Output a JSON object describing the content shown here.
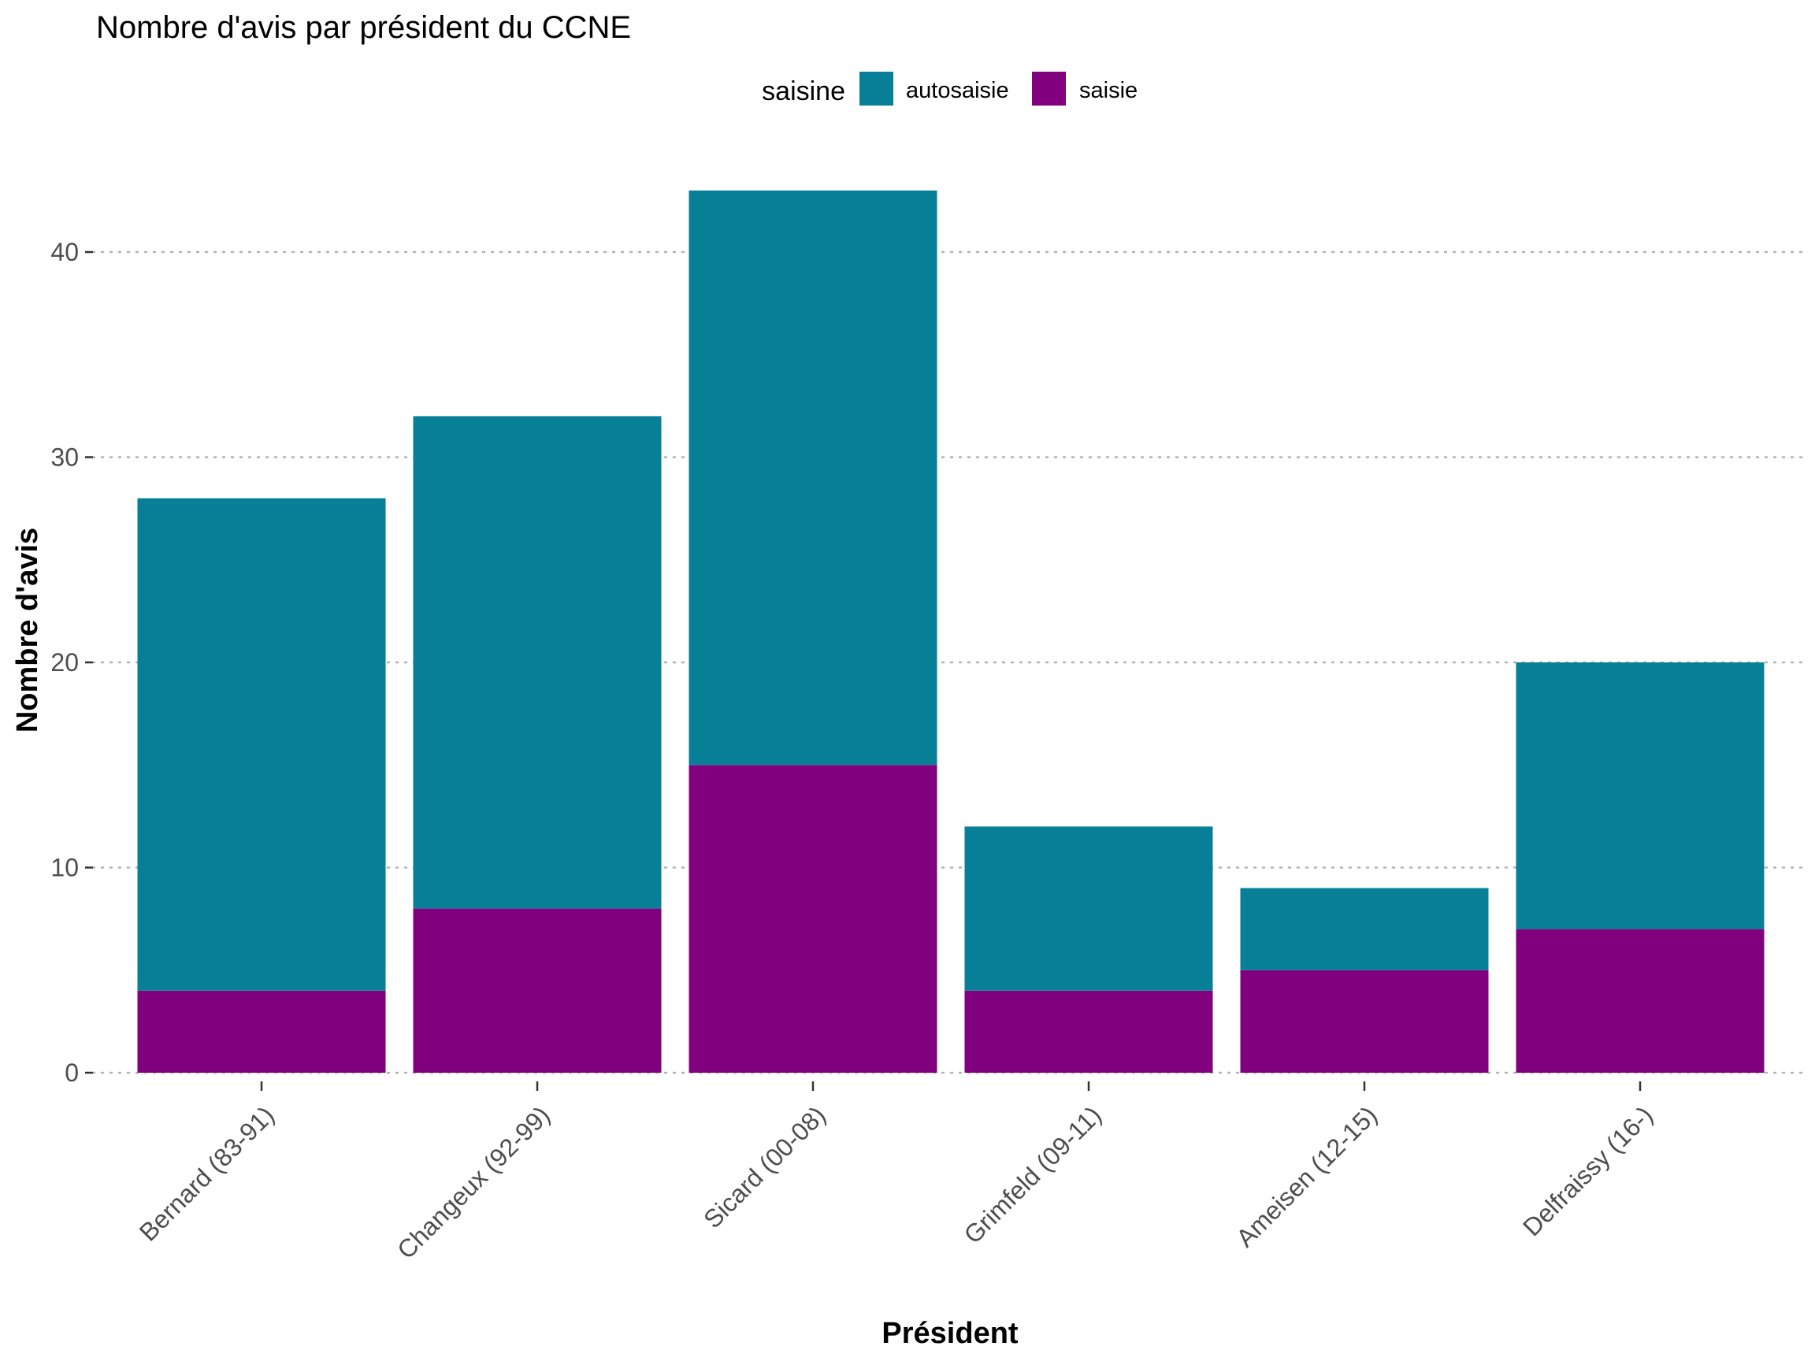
{
  "chart_data": {
    "type": "bar",
    "stacked": true,
    "title": "Nombre d'avis par président du CCNE",
    "xlabel": "Président",
    "ylabel": "Nombre d'avis",
    "categories": [
      "Bernard (83-91)",
      "Changeux (92-99)",
      "Sicard (00-08)",
      "Grimfeld (09-11)",
      "Ameisen (12-15)",
      "Delfraissy (16-)"
    ],
    "series": [
      {
        "name": "autosaisie",
        "color": "#077f97",
        "values": [
          24,
          24,
          28,
          8,
          4,
          13
        ]
      },
      {
        "name": "saisie",
        "color": "#80007e",
        "values": [
          4,
          8,
          15,
          4,
          5,
          7
        ]
      }
    ],
    "legend": {
      "title": "saisine",
      "position": "top"
    },
    "ylim": [
      0,
      43
    ],
    "yticks": [
      0,
      10,
      20,
      30,
      40
    ],
    "grid": "horizontal dotted"
  }
}
